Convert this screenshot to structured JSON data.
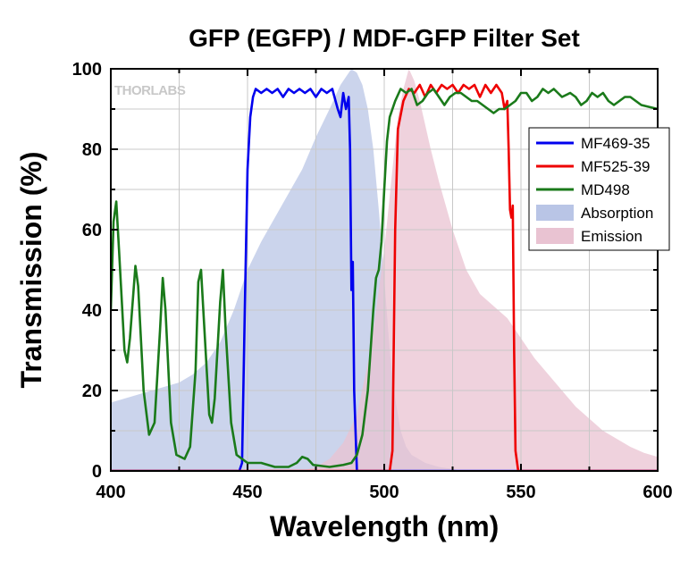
{
  "chart_data": {
    "type": "line",
    "title": "GFP (EGFP) / MDF-GFP Filter Set",
    "xlabel": "Wavelength (nm)",
    "ylabel": "Transmission (%)",
    "xlim": [
      400,
      600
    ],
    "ylim": [
      0,
      100
    ],
    "x_ticks": [
      400,
      450,
      500,
      550,
      600
    ],
    "y_ticks": [
      0,
      20,
      40,
      60,
      80,
      100
    ],
    "grid": true,
    "legend_position": "right",
    "watermark": "THORLABS",
    "series": [
      {
        "name": "MF469-35",
        "style": "line",
        "color": "#0000ee",
        "points": [
          [
            400,
            0
          ],
          [
            447,
            0
          ],
          [
            448,
            2
          ],
          [
            449,
            40
          ],
          [
            450,
            75
          ],
          [
            451,
            88
          ],
          [
            452,
            93
          ],
          [
            453,
            95
          ],
          [
            455,
            94
          ],
          [
            457,
            95
          ],
          [
            459,
            94
          ],
          [
            461,
            95
          ],
          [
            463,
            93
          ],
          [
            465,
            95
          ],
          [
            467,
            94
          ],
          [
            469,
            95
          ],
          [
            471,
            94
          ],
          [
            473,
            95
          ],
          [
            475,
            93
          ],
          [
            477,
            95
          ],
          [
            479,
            94
          ],
          [
            481,
            95
          ],
          [
            483,
            90
          ],
          [
            484,
            88
          ],
          [
            485,
            94
          ],
          [
            486,
            90
          ],
          [
            487,
            93
          ],
          [
            487.5,
            80
          ],
          [
            488,
            45
          ],
          [
            488.5,
            52
          ],
          [
            489,
            20
          ],
          [
            490,
            0
          ],
          [
            600,
            0
          ]
        ]
      },
      {
        "name": "MF525-39",
        "style": "line",
        "color": "#ee0000",
        "points": [
          [
            400,
            0
          ],
          [
            502,
            0
          ],
          [
            503,
            5
          ],
          [
            504,
            60
          ],
          [
            505,
            85
          ],
          [
            507,
            92
          ],
          [
            509,
            95
          ],
          [
            511,
            94
          ],
          [
            513,
            96
          ],
          [
            515,
            93
          ],
          [
            517,
            96
          ],
          [
            519,
            94
          ],
          [
            521,
            96
          ],
          [
            523,
            95
          ],
          [
            525,
            96
          ],
          [
            527,
            94
          ],
          [
            529,
            96
          ],
          [
            531,
            95
          ],
          [
            533,
            96
          ],
          [
            535,
            93
          ],
          [
            537,
            96
          ],
          [
            539,
            94
          ],
          [
            541,
            96
          ],
          [
            543,
            94
          ],
          [
            544,
            90
          ],
          [
            545,
            92
          ],
          [
            545.5,
            80
          ],
          [
            546,
            65
          ],
          [
            546.5,
            63
          ],
          [
            547,
            66
          ],
          [
            547.5,
            30
          ],
          [
            548,
            5
          ],
          [
            549,
            0
          ],
          [
            600,
            0
          ]
        ]
      },
      {
        "name": "MD498",
        "style": "line",
        "color": "#1a7a1a",
        "points": [
          [
            400,
            40
          ],
          [
            401,
            62
          ],
          [
            402,
            67
          ],
          [
            403,
            55
          ],
          [
            405,
            30
          ],
          [
            406,
            27
          ],
          [
            407,
            33
          ],
          [
            409,
            51
          ],
          [
            410,
            46
          ],
          [
            412,
            20
          ],
          [
            414,
            9
          ],
          [
            416,
            12
          ],
          [
            418,
            35
          ],
          [
            419,
            48
          ],
          [
            420,
            40
          ],
          [
            422,
            12
          ],
          [
            424,
            4
          ],
          [
            427,
            3
          ],
          [
            429,
            6
          ],
          [
            431,
            25
          ],
          [
            432,
            47
          ],
          [
            433,
            50
          ],
          [
            434,
            38
          ],
          [
            436,
            14
          ],
          [
            437,
            12
          ],
          [
            438,
            18
          ],
          [
            440,
            42
          ],
          [
            441,
            50
          ],
          [
            442,
            35
          ],
          [
            444,
            12
          ],
          [
            446,
            4
          ],
          [
            450,
            2
          ],
          [
            455,
            2
          ],
          [
            460,
            1
          ],
          [
            465,
            1
          ],
          [
            468,
            2
          ],
          [
            470,
            3.5
          ],
          [
            472,
            3
          ],
          [
            474,
            1.5
          ],
          [
            480,
            1
          ],
          [
            485,
            1.5
          ],
          [
            488,
            2
          ],
          [
            490,
            4
          ],
          [
            492,
            9
          ],
          [
            494,
            20
          ],
          [
            496,
            40
          ],
          [
            497,
            48
          ],
          [
            498,
            50
          ],
          [
            499,
            57
          ],
          [
            500,
            70
          ],
          [
            501,
            82
          ],
          [
            502,
            88
          ],
          [
            504,
            92
          ],
          [
            506,
            95
          ],
          [
            508,
            94
          ],
          [
            510,
            95
          ],
          [
            512,
            91
          ],
          [
            514,
            92
          ],
          [
            516,
            94
          ],
          [
            518,
            95
          ],
          [
            520,
            93
          ],
          [
            522,
            91
          ],
          [
            524,
            93
          ],
          [
            526,
            94
          ],
          [
            528,
            94
          ],
          [
            530,
            93
          ],
          [
            532,
            92
          ],
          [
            534,
            92
          ],
          [
            536,
            91
          ],
          [
            538,
            90
          ],
          [
            540,
            89
          ],
          [
            542,
            90
          ],
          [
            544,
            90
          ],
          [
            546,
            91
          ],
          [
            548,
            92
          ],
          [
            550,
            94
          ],
          [
            552,
            94
          ],
          [
            554,
            92
          ],
          [
            556,
            93
          ],
          [
            558,
            95
          ],
          [
            560,
            94
          ],
          [
            562,
            95
          ],
          [
            565,
            93
          ],
          [
            568,
            94
          ],
          [
            570,
            93
          ],
          [
            572,
            91
          ],
          [
            574,
            92
          ],
          [
            576,
            94
          ],
          [
            578,
            93
          ],
          [
            580,
            94
          ],
          [
            582,
            92
          ],
          [
            584,
            91
          ],
          [
            586,
            92
          ],
          [
            588,
            93
          ],
          [
            590,
            93
          ],
          [
            592,
            92
          ],
          [
            594,
            91
          ],
          [
            597,
            90.5
          ],
          [
            600,
            90
          ]
        ]
      },
      {
        "name": "Absorption",
        "style": "area",
        "color": "#b9c5e6",
        "points": [
          [
            400,
            17
          ],
          [
            405,
            18
          ],
          [
            410,
            19
          ],
          [
            415,
            20
          ],
          [
            420,
            21
          ],
          [
            425,
            22
          ],
          [
            430,
            24
          ],
          [
            435,
            27
          ],
          [
            440,
            32
          ],
          [
            445,
            40
          ],
          [
            450,
            50
          ],
          [
            455,
            57
          ],
          [
            460,
            63
          ],
          [
            465,
            69
          ],
          [
            470,
            75
          ],
          [
            475,
            83
          ],
          [
            480,
            90
          ],
          [
            484,
            96
          ],
          [
            486,
            98
          ],
          [
            488,
            100
          ],
          [
            490,
            99
          ],
          [
            492,
            96
          ],
          [
            494,
            90
          ],
          [
            496,
            80
          ],
          [
            498,
            65
          ],
          [
            500,
            48
          ],
          [
            502,
            30
          ],
          [
            504,
            18
          ],
          [
            506,
            10
          ],
          [
            508,
            6
          ],
          [
            510,
            4
          ],
          [
            515,
            2
          ],
          [
            520,
            1
          ],
          [
            525,
            0.5
          ],
          [
            530,
            0
          ],
          [
            600,
            0
          ]
        ]
      },
      {
        "name": "Emission",
        "style": "area",
        "color": "#e9c3d2",
        "points": [
          [
            400,
            0
          ],
          [
            470,
            0
          ],
          [
            475,
            1
          ],
          [
            480,
            3
          ],
          [
            485,
            7
          ],
          [
            490,
            14
          ],
          [
            495,
            30
          ],
          [
            500,
            55
          ],
          [
            503,
            75
          ],
          [
            505,
            88
          ],
          [
            507,
            95
          ],
          [
            509,
            100
          ],
          [
            511,
            97
          ],
          [
            513,
            92
          ],
          [
            515,
            86
          ],
          [
            517,
            80
          ],
          [
            520,
            72
          ],
          [
            525,
            60
          ],
          [
            530,
            50
          ],
          [
            535,
            44
          ],
          [
            540,
            41
          ],
          [
            545,
            38
          ],
          [
            550,
            33
          ],
          [
            555,
            28
          ],
          [
            560,
            24
          ],
          [
            565,
            20
          ],
          [
            570,
            16
          ],
          [
            575,
            13
          ],
          [
            580,
            10
          ],
          [
            585,
            8
          ],
          [
            590,
            6
          ],
          [
            595,
            4.5
          ],
          [
            600,
            3.5
          ]
        ]
      }
    ]
  }
}
